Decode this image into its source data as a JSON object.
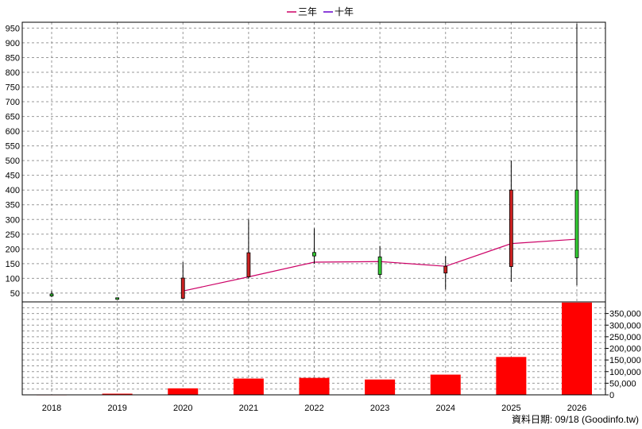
{
  "chart_data": {
    "type": "candlestick",
    "legend": {
      "placement": "top-center",
      "entries": [
        {
          "name": "三年",
          "color": "#cc0066"
        },
        {
          "name": "十年",
          "color": "#6600cc"
        }
      ]
    },
    "categories": [
      "2018",
      "2019",
      "2020",
      "2021",
      "2022",
      "2023",
      "2024",
      "2025",
      "2026"
    ],
    "price_axis": {
      "ylim": [
        20,
        970
      ],
      "ticks": [
        50,
        100,
        150,
        200,
        250,
        300,
        350,
        400,
        450,
        500,
        550,
        600,
        650,
        700,
        750,
        800,
        850,
        900,
        950
      ],
      "tick_labels": [
        "50",
        "100",
        "150",
        "200",
        "250",
        "300",
        "350",
        "400",
        "450",
        "500",
        "550",
        "600",
        "650",
        "700",
        "750",
        "800",
        "850",
        "900",
        "950"
      ]
    },
    "candles": [
      {
        "x": "2018",
        "open": 40,
        "close": 47,
        "high": 58,
        "low": 36
      },
      {
        "x": "2019",
        "open": 30,
        "close": 34,
        "high": 35,
        "low": 29
      },
      {
        "x": "2020",
        "open": 101,
        "close": 32,
        "high": 155,
        "low": 30
      },
      {
        "x": "2021",
        "open": 187,
        "close": 105,
        "high": 300,
        "low": 99
      },
      {
        "x": "2022",
        "open": 176,
        "close": 188,
        "high": 270,
        "low": 150
      },
      {
        "x": "2023",
        "open": 113,
        "close": 173,
        "high": 210,
        "low": 100
      },
      {
        "x": "2024",
        "open": 141,
        "close": 118,
        "high": 175,
        "low": 62
      },
      {
        "x": "2025",
        "open": 400,
        "close": 140,
        "high": 500,
        "low": 88
      },
      {
        "x": "2026",
        "open": 170,
        "close": 400,
        "high": 965,
        "low": 76
      }
    ],
    "up_color": "#33cc33",
    "down_color": "#cc2222",
    "ma_line": {
      "color": "#cc0066",
      "points": [
        {
          "x": "2020",
          "y": 57
        },
        {
          "x": "2021",
          "y": 105
        },
        {
          "x": "2022",
          "y": 155
        },
        {
          "x": "2023",
          "y": 157
        },
        {
          "x": "2024",
          "y": 141
        },
        {
          "x": "2025",
          "y": 218
        },
        {
          "x": "2026",
          "y": 233
        }
      ]
    },
    "volume_axis": {
      "ylim": [
        0,
        400000
      ],
      "ticks": [
        0,
        50000,
        100000,
        150000,
        200000,
        250000,
        300000,
        350000
      ],
      "tick_labels": [
        "0",
        "50,000",
        "100,000",
        "150,000",
        "200,000",
        "250,000",
        "300,000",
        "350,000"
      ]
    },
    "volume_color": "#ff0000",
    "volume": [
      1500,
      5000,
      28000,
      70000,
      73000,
      66000,
      87000,
      163000,
      397000
    ],
    "grid": true,
    "footer": "資料日期: 09/18 (Goodinfo.tw)"
  }
}
